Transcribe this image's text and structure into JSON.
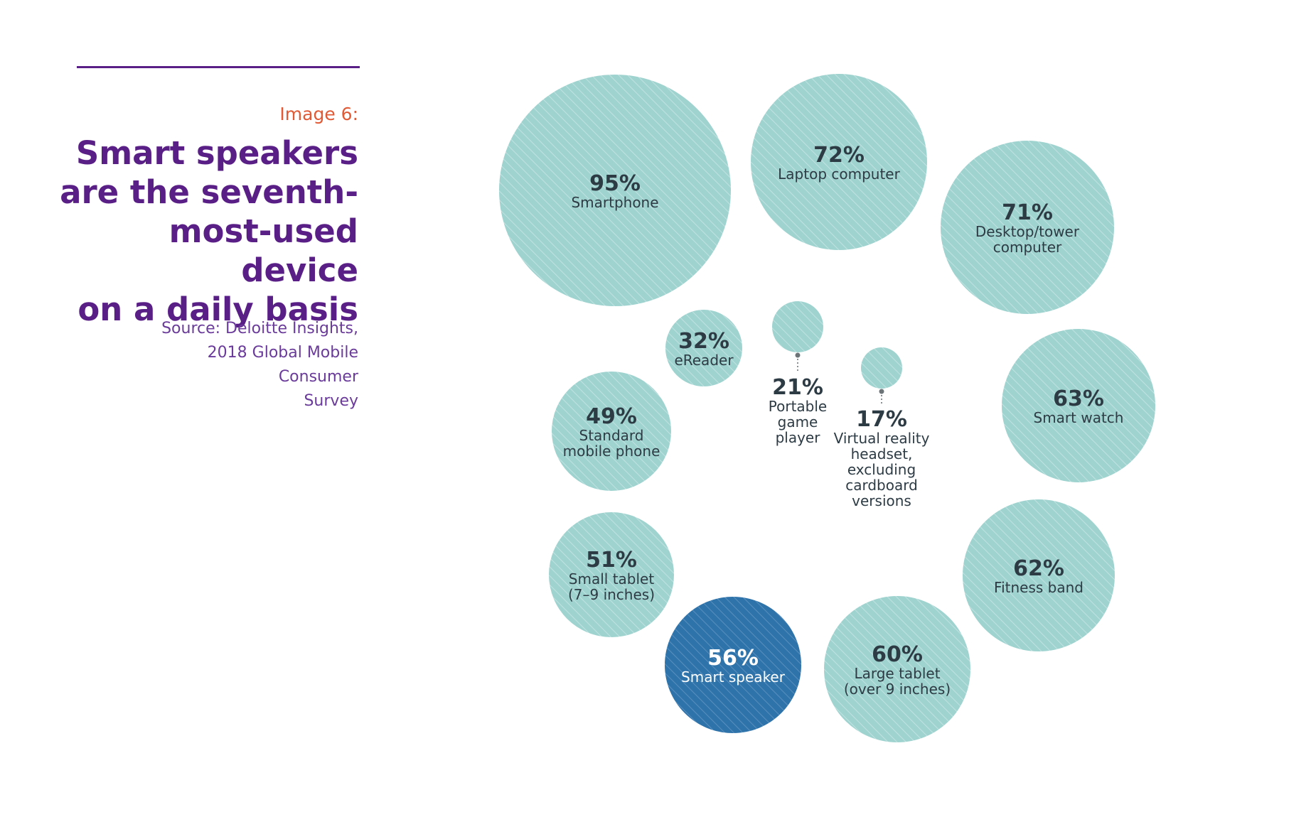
{
  "header": {
    "caption": "Image 6:",
    "title_lines": [
      "Smart speakers",
      "are the seventh-",
      "most-used device",
      "on a daily basis"
    ],
    "source_lines": [
      "Source: Deloitte Insights,",
      "2018 Global Mobile Consumer",
      "Survey"
    ]
  },
  "colors": {
    "accent_purple": "#5a1f87",
    "caption_orange": "#e05a36",
    "bubble_teal": "#9fd3cf",
    "highlight_blue": "#2f73ab",
    "text_dark": "#2d3b45"
  },
  "chart_data": {
    "type": "bubble",
    "unit": "%",
    "series": [
      {
        "label": "Smartphone",
        "value": 95,
        "value_text": "95%",
        "label_lines": [
          "Smartphone"
        ]
      },
      {
        "label": "Laptop computer",
        "value": 72,
        "value_text": "72%",
        "label_lines": [
          "Laptop computer"
        ]
      },
      {
        "label": "Desktop/tower computer",
        "value": 71,
        "value_text": "71%",
        "label_lines": [
          "Desktop/tower",
          "computer"
        ]
      },
      {
        "label": "Smart watch",
        "value": 63,
        "value_text": "63%",
        "label_lines": [
          "Smart watch"
        ]
      },
      {
        "label": "Fitness band",
        "value": 62,
        "value_text": "62%",
        "label_lines": [
          "Fitness band"
        ]
      },
      {
        "label": "Large tablet (over 9 inches)",
        "value": 60,
        "value_text": "60%",
        "label_lines": [
          "Large tablet",
          "(over 9 inches)"
        ]
      },
      {
        "label": "Smart speaker",
        "value": 56,
        "value_text": "56%",
        "label_lines": [
          "Smart speaker"
        ],
        "highlight": true
      },
      {
        "label": "Small tablet (7–9 inches)",
        "value": 51,
        "value_text": "51%",
        "label_lines": [
          "Small tablet",
          "(7–9 inches)"
        ]
      },
      {
        "label": "Standard mobile phone",
        "value": 49,
        "value_text": "49%",
        "label_lines": [
          "Standard",
          "mobile phone"
        ]
      },
      {
        "label": "eReader",
        "value": 32,
        "value_text": "32%",
        "label_lines": [
          "eReader"
        ]
      },
      {
        "label": "Portable game player",
        "value": 21,
        "value_text": "21%",
        "label_lines": [
          "Portable",
          "game",
          "player"
        ],
        "label_outside": true
      },
      {
        "label": "Virtual reality headset, excluding cardboard versions",
        "value": 17,
        "value_text": "17%",
        "label_lines": [
          "Virtual reality",
          "headset,",
          "excluding",
          "cardboard",
          "versions"
        ],
        "label_outside": true
      }
    ]
  }
}
